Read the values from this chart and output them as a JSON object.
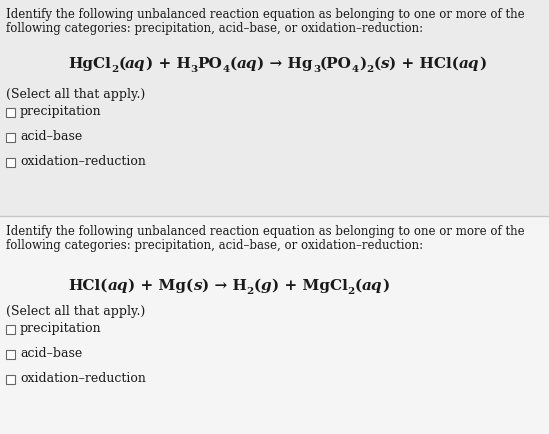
{
  "bg_top": "#ebebeb",
  "bg_bottom": "#f5f5f5",
  "divider_color": "#c8c8c8",
  "text_color": "#1a1a1a",
  "eq_color": "#1a1a1a",
  "checkbox_edge": "#666666",
  "q1_header_line1": "Identify the following unbalanced reaction equation as belonging to one or more of the",
  "q1_header_line2": "following categories: precipitation, acid–base, or oxidation–reduction:",
  "q1_select": "(Select all that apply.)",
  "q1_options": [
    "precipitation",
    "acid–base",
    "oxidation–reduction"
  ],
  "q2_header_line1": "Identify the following unbalanced reaction equation as belonging to one or more of the",
  "q2_header_line2": "following categories: precipitation, acid–base, or oxidation–reduction:",
  "q2_select": "(Select all that apply.)",
  "q2_options": [
    "precipitation",
    "acid–base",
    "oxidation–reduction"
  ],
  "font_size_body": 8.5,
  "font_size_select": 9.0,
  "font_size_option": 9.0,
  "font_size_eq_main": 11.0,
  "font_size_eq_sub": 7.5
}
